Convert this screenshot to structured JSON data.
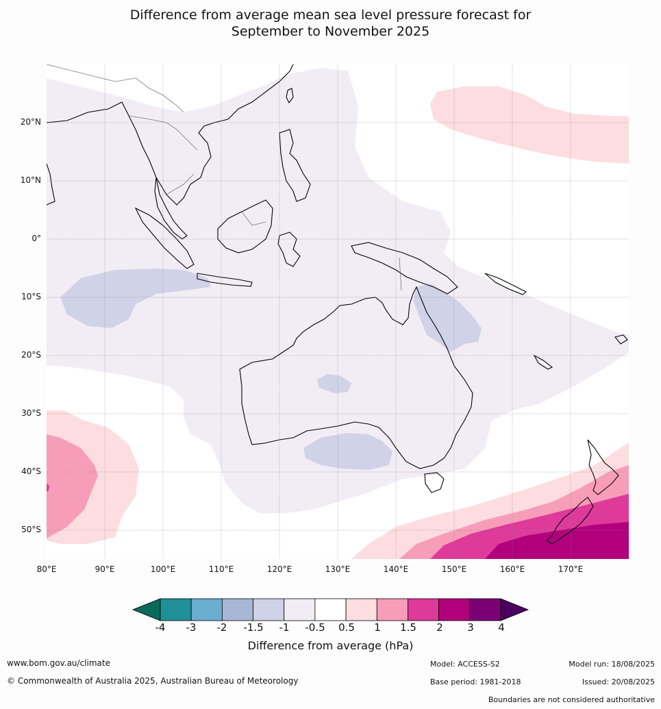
{
  "title_line1": "Difference from average mean sea level pressure forecast for",
  "title_line2": "September to November 2025",
  "map": {
    "lon_range": [
      80,
      180
    ],
    "lat_range": [
      -55,
      30
    ],
    "lat_labels": [
      "20°N",
      "10°N",
      "0°",
      "10°S",
      "20°S",
      "30°S",
      "40°S",
      "50°S"
    ],
    "lon_labels": [
      "80°E",
      "90°E",
      "100°E",
      "110°E",
      "120°E",
      "130°E",
      "140°E",
      "150°E",
      "160°E",
      "170°E"
    ]
  },
  "legend": {
    "tick_labels": [
      "-4",
      "-3",
      "-2",
      "-1.5",
      "-1",
      "-0.5",
      "0.5",
      "1",
      "1.5",
      "2",
      "3",
      "4"
    ],
    "colors": [
      "#0b6a5a",
      "#1f8f98",
      "#6aaed0",
      "#a9b7d6",
      "#d0d2e7",
      "#f2ecf5",
      "#ffffff",
      "#fddde0",
      "#f79db9",
      "#de3a9a",
      "#b2007c",
      "#7b0076",
      "#4a005e"
    ],
    "label": "Difference from average (hPa)"
  },
  "footer": {
    "website": "www.bom.gov.au/climate",
    "copyright": "© Commonwealth of Australia 2025, Australian Bureau of Meteorology",
    "model": "Model: ACCESS-S2",
    "base_period": "Base period: 1981-2018",
    "model_run": "Model run: 18/08/2025",
    "issued": "Issued: 20/08/2025",
    "disclaimer": "Boundaries are not considered authoritative"
  }
}
